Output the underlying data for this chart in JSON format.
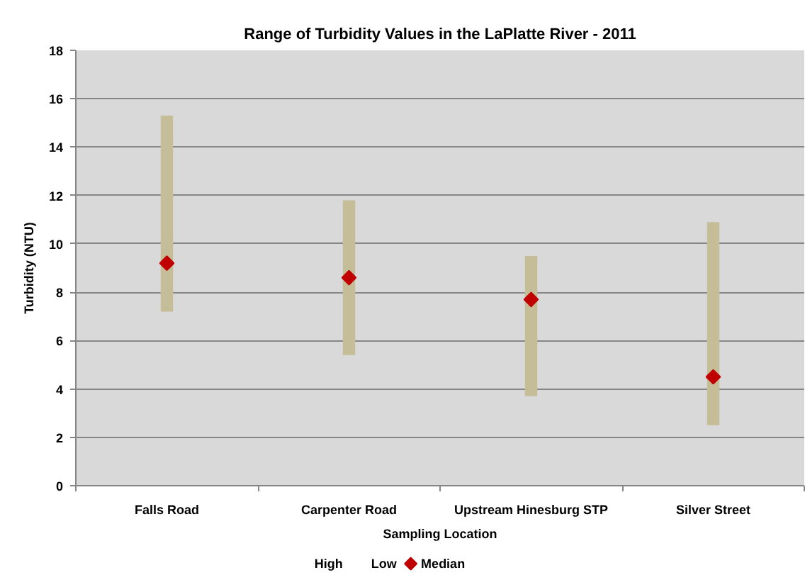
{
  "chart_data": {
    "type": "bar",
    "title": "Range of Turbidity Values in the LaPlatte River - 2011",
    "xlabel": "Sampling Location",
    "ylabel": "Turbidity (NTU)",
    "categories": [
      "Falls Road",
      "Carpenter Road",
      "Upstream Hinesburg STP",
      "Silver Street"
    ],
    "series": [
      {
        "color": "#c4bd97",
        "base": [
          7.2,
          5.4,
          3.7,
          2.5
        ],
        "values": [
          8.1,
          6.4,
          5.8,
          8.4
        ]
      },
      {
        "name": "Median",
        "type": "scatter",
        "color": "#c00000",
        "marker": "diamond",
        "x": [
          "Falls Road",
          "Carpenter Road",
          "Upstream Hinesburg STP",
          "Silver Street"
        ],
        "values": [
          9.2,
          8.6,
          7.7,
          4.5
        ]
      }
    ],
    "annotations": [
      "High",
      "Low"
    ],
    "ylim": [
      0,
      18
    ],
    "yticks": [
      0,
      2,
      4,
      6,
      8,
      10,
      12,
      14,
      16,
      18
    ],
    "grid": "y",
    "legend": "bottom"
  }
}
